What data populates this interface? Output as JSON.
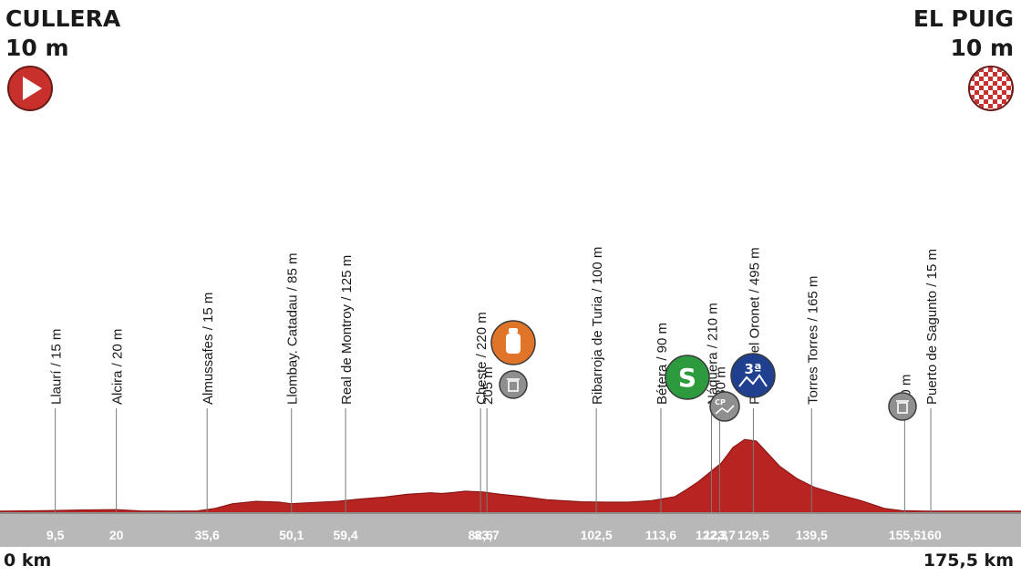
{
  "start": {
    "name": "CULLERA",
    "altitude": "10 m",
    "icon": "start-play-icon",
    "color": "#c8302b"
  },
  "finish": {
    "name": "EL PUIG",
    "altitude": "10 m",
    "icon": "finish-checkered-icon",
    "color": "#c8302b"
  },
  "distance": {
    "start_label": "0 km",
    "end_label": "175,5 km"
  },
  "profile": {
    "total_km": 175.5,
    "fill_color": "#b82422",
    "points": [
      [
        0,
        12
      ],
      [
        8,
        15
      ],
      [
        14,
        20
      ],
      [
        20,
        22
      ],
      [
        24,
        14
      ],
      [
        30,
        12
      ],
      [
        34,
        14
      ],
      [
        37,
        30
      ],
      [
        40,
        60
      ],
      [
        44,
        75
      ],
      [
        48,
        70
      ],
      [
        50,
        60
      ],
      [
        54,
        68
      ],
      [
        58,
        75
      ],
      [
        62,
        90
      ],
      [
        66,
        102
      ],
      [
        70,
        120
      ],
      [
        74,
        130
      ],
      [
        76,
        125
      ],
      [
        78,
        132
      ],
      [
        80,
        140
      ],
      [
        83,
        135
      ],
      [
        86,
        120
      ],
      [
        90,
        105
      ],
      [
        94,
        85
      ],
      [
        100,
        72
      ],
      [
        104,
        70
      ],
      [
        108,
        70
      ],
      [
        112,
        80
      ],
      [
        116,
        105
      ],
      [
        118,
        150
      ],
      [
        120,
        200
      ],
      [
        122,
        260
      ],
      [
        124,
        320
      ],
      [
        126,
        420
      ],
      [
        128,
        470
      ],
      [
        130,
        460
      ],
      [
        132,
        380
      ],
      [
        134,
        300
      ],
      [
        137,
        220
      ],
      [
        140,
        165
      ],
      [
        144,
        120
      ],
      [
        148,
        80
      ],
      [
        152,
        30
      ],
      [
        155,
        15
      ],
      [
        160,
        12
      ],
      [
        165,
        12
      ],
      [
        175.5,
        12
      ]
    ]
  },
  "waypoints": [
    {
      "km": 9.5,
      "km_label": "9,5",
      "label": "Llaurí / 15 m"
    },
    {
      "km": 20,
      "km_label": "20",
      "label": "Alcira / 20 m"
    },
    {
      "km": 35.6,
      "km_label": "35,6",
      "label": "Almussafes / 15 m"
    },
    {
      "km": 50.1,
      "km_label": "50,1",
      "label": "Llombay. Catadau / 85 m"
    },
    {
      "km": 59.4,
      "km_label": "59,4",
      "label": "Real de Montroy / 125 m"
    },
    {
      "km": 82.6,
      "km_label": "82,6",
      "label": "Cheste / 220 m"
    },
    {
      "km": 83.7,
      "km_label": "83,7",
      "label": "205 m"
    },
    {
      "km": 102.5,
      "km_label": "102,5",
      "label": "Ribarroja de Turia / 100 m"
    },
    {
      "km": 113.6,
      "km_label": "113,6",
      "label": "Bétera / 90 m"
    },
    {
      "km": 122.3,
      "km_label": "122,3",
      "label": "Náquera / 210 m"
    },
    {
      "km": 123.7,
      "km_label": "123,7",
      "label": "230 m"
    },
    {
      "km": 129.5,
      "km_label": "129,5",
      "label": "Puerto del Oronet / 495 m"
    },
    {
      "km": 139.5,
      "km_label": "139,5",
      "label": "Torres Torres / 165 m"
    },
    {
      "km": 155.5,
      "km_label": "155,5",
      "label": "10 m"
    },
    {
      "km": 160,
      "km_label": "160",
      "label": "Puerto de Sagunto / 15 m"
    }
  ],
  "markers": [
    {
      "type": "feed-zone",
      "icon": "bottle-icon",
      "color": "#e0752a",
      "text": ""
    },
    {
      "type": "waste-zone",
      "icon": "trash-icon",
      "color": "#8f8f8f",
      "text": ""
    },
    {
      "type": "sprint",
      "icon": "sprint-s-icon",
      "color": "#2e9a3e",
      "text": "S"
    },
    {
      "type": "climb",
      "icon": "mountain-3rd-category-icon",
      "color": "#1f3f8f",
      "text": "3ª"
    },
    {
      "type": "control-point",
      "icon": "cp-icon",
      "color": "#8f8f8f",
      "text": "CP"
    },
    {
      "type": "waste-zone",
      "icon": "trash-icon",
      "color": "#8f8f8f",
      "text": ""
    }
  ]
}
